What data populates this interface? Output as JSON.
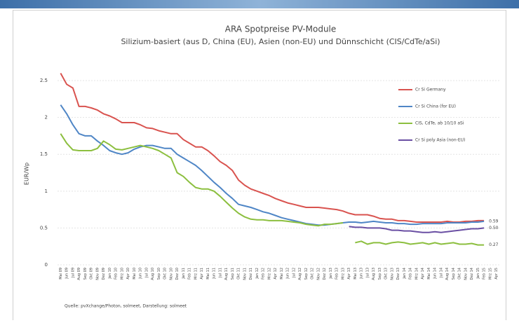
{
  "chart_data": {
    "type": "line",
    "title": "ARA Spotpreise PV-Module",
    "subtitle": "Silizium-basiert (aus D, China (EU), Asien (non-EU) und Dünnschicht (CIS/CdTe/aSi)",
    "y_label": "EUR/Wp",
    "source": "Quelle: pvXchange/Photon, solmeet, Darstellung: solmeet",
    "categories": [
      "Mai 09",
      "Jun 09",
      "Jul 09",
      "Aug 09",
      "Sep 09",
      "Okt 09",
      "Nov 09",
      "Dez 09",
      "Jan 10",
      "Feb 10",
      "Mrz 10",
      "Apr 10",
      "Mai 10",
      "Jun 10",
      "Jul 10",
      "Aug 10",
      "Sep 10",
      "Okt 10",
      "Nov 10",
      "Dez 10",
      "Jan 11",
      "Feb 11",
      "Mrz 11",
      "Apr 11",
      "Mai 11",
      "Jun 11",
      "Jul 11",
      "Aug 11",
      "Sep 11",
      "Okt 11",
      "Nov 11",
      "Dez 11",
      "Jan 12",
      "Feb 12",
      "Mrz 12",
      "Apr 12",
      "Mai 12",
      "Jun 12",
      "Jul 12",
      "Aug 12",
      "Sep 12",
      "Okt 12",
      "Nov 12",
      "Dez 12",
      "Jan 13",
      "Feb 13",
      "Mrz 13",
      "Apr 13",
      "Mai 13",
      "Jun 13",
      "Jul 13",
      "Aug 13",
      "Sep 13",
      "Okt 13",
      "Nov 13",
      "Dez 13",
      "Jan 14",
      "Feb 14",
      "Mrz 14",
      "Apr 14",
      "Mai 14",
      "Jun 14",
      "Jul 14",
      "Aug 14",
      "Sep 14",
      "Okt 14",
      "Nov 14",
      "Dez 14",
      "Jan 15",
      "Feb 15",
      "Mrz 15",
      "Apr 15"
    ],
    "series": [
      {
        "name": "Cr Si Germany",
        "color": "#d9534f",
        "values": [
          2.6,
          2.45,
          2.4,
          2.15,
          2.15,
          2.13,
          2.1,
          2.05,
          2.02,
          1.98,
          1.93,
          1.93,
          1.93,
          1.9,
          1.86,
          1.85,
          1.82,
          1.8,
          1.78,
          1.78,
          1.7,
          1.65,
          1.6,
          1.6,
          1.55,
          1.48,
          1.4,
          1.35,
          1.28,
          1.15,
          1.08,
          1.03,
          1.0,
          0.97,
          0.94,
          0.9,
          0.87,
          0.84,
          0.82,
          0.8,
          0.78,
          0.78,
          0.78,
          0.77,
          0.76,
          0.75,
          0.73,
          0.7,
          0.68,
          0.68,
          0.68,
          0.66,
          0.63,
          0.62,
          0.62,
          0.6,
          0.6,
          0.59,
          0.58,
          0.58,
          0.58,
          0.58,
          0.58,
          0.59,
          0.58,
          0.58,
          0.59,
          0.59,
          0.6,
          0.6,
          null,
          null
        ]
      },
      {
        "name": "Cr Si China (for EU)",
        "color": "#4f86c6",
        "values": [
          2.17,
          2.05,
          1.9,
          1.78,
          1.75,
          1.75,
          1.68,
          1.62,
          1.55,
          1.52,
          1.5,
          1.52,
          1.57,
          1.6,
          1.62,
          1.62,
          1.6,
          1.58,
          1.58,
          1.5,
          1.45,
          1.4,
          1.35,
          1.28,
          1.2,
          1.12,
          1.05,
          0.97,
          0.9,
          0.82,
          0.8,
          0.78,
          0.75,
          0.72,
          0.7,
          0.67,
          0.64,
          0.62,
          0.6,
          0.58,
          0.56,
          0.55,
          0.54,
          0.54,
          0.55,
          0.56,
          0.57,
          0.58,
          0.58,
          0.57,
          0.58,
          0.59,
          0.58,
          0.57,
          0.57,
          0.56,
          0.56,
          0.55,
          0.55,
          0.56,
          0.56,
          0.56,
          0.56,
          0.57,
          0.57,
          0.57,
          0.57,
          0.58,
          0.58,
          0.59,
          null,
          null
        ],
        "value_labels": [
          null,
          null,
          null,
          null,
          null,
          null,
          null,
          null,
          null,
          null,
          null,
          null,
          null,
          null,
          null,
          null,
          null,
          null,
          null,
          null,
          null,
          null,
          null,
          null,
          null,
          null,
          null,
          null,
          null,
          null,
          null,
          null,
          null,
          null,
          null,
          null,
          null,
          null,
          null,
          null,
          null,
          null,
          null,
          null,
          null,
          null,
          null,
          null,
          null,
          null,
          null,
          null,
          null,
          null,
          null,
          null,
          null,
          null,
          null,
          null,
          null,
          null,
          null,
          null,
          null,
          null,
          null,
          null,
          null,
          "0.59",
          null,
          null
        ]
      },
      {
        "name": "CIS, CdTe, ab 10/10 aSi",
        "color": "#8cbf3f",
        "values": [
          1.78,
          1.65,
          1.56,
          1.55,
          1.55,
          1.55,
          1.58,
          1.68,
          1.63,
          1.57,
          1.56,
          1.58,
          1.6,
          1.62,
          1.6,
          1.58,
          1.55,
          1.5,
          1.45,
          1.25,
          1.2,
          1.12,
          1.05,
          1.03,
          1.03,
          1.0,
          0.93,
          0.85,
          0.77,
          0.7,
          0.65,
          0.62,
          0.61,
          0.61,
          0.6,
          0.6,
          0.6,
          0.59,
          0.58,
          0.57,
          0.55,
          0.54,
          0.53,
          0.55,
          0.55,
          0.56,
          0.57,
          null,
          0.3,
          0.32,
          0.28,
          0.3,
          0.3,
          0.28,
          0.3,
          0.31,
          0.3,
          0.28,
          0.29,
          0.3,
          0.28,
          0.3,
          0.28,
          0.29,
          0.3,
          0.28,
          0.28,
          0.29,
          0.27,
          0.27,
          null,
          null
        ],
        "value_labels": [
          null,
          null,
          null,
          null,
          null,
          null,
          null,
          null,
          null,
          null,
          null,
          null,
          null,
          null,
          null,
          null,
          null,
          null,
          null,
          null,
          null,
          null,
          null,
          null,
          null,
          null,
          null,
          null,
          null,
          null,
          null,
          null,
          null,
          null,
          null,
          null,
          null,
          null,
          null,
          null,
          null,
          null,
          null,
          null,
          null,
          null,
          null,
          null,
          null,
          null,
          null,
          null,
          null,
          null,
          null,
          null,
          null,
          null,
          null,
          null,
          null,
          null,
          null,
          null,
          null,
          null,
          null,
          null,
          null,
          "0.27",
          null,
          null
        ]
      },
      {
        "name": "Cr Si poly Asia (non-EU)",
        "color": "#6a4fa3",
        "values": [
          null,
          null,
          null,
          null,
          null,
          null,
          null,
          null,
          null,
          null,
          null,
          null,
          null,
          null,
          null,
          null,
          null,
          null,
          null,
          null,
          null,
          null,
          null,
          null,
          null,
          null,
          null,
          null,
          null,
          null,
          null,
          null,
          null,
          null,
          null,
          null,
          null,
          null,
          null,
          null,
          null,
          null,
          null,
          null,
          null,
          null,
          null,
          0.52,
          0.51,
          0.51,
          0.5,
          0.5,
          0.5,
          0.49,
          0.47,
          0.47,
          0.46,
          0.46,
          0.45,
          0.44,
          0.44,
          0.45,
          0.44,
          0.45,
          0.46,
          0.47,
          0.48,
          0.49,
          0.49,
          0.5,
          null,
          null
        ],
        "value_labels": [
          null,
          null,
          null,
          null,
          null,
          null,
          null,
          null,
          null,
          null,
          null,
          null,
          null,
          null,
          null,
          null,
          null,
          null,
          null,
          null,
          null,
          null,
          null,
          null,
          null,
          null,
          null,
          null,
          null,
          null,
          null,
          null,
          null,
          null,
          null,
          null,
          null,
          null,
          null,
          null,
          null,
          null,
          null,
          null,
          null,
          null,
          null,
          null,
          null,
          null,
          null,
          null,
          null,
          null,
          null,
          null,
          null,
          null,
          null,
          null,
          null,
          null,
          null,
          null,
          null,
          null,
          null,
          null,
          null,
          "0.50",
          null,
          null
        ]
      }
    ],
    "ylim": [
      0,
      2.7
    ],
    "yticks": [
      0,
      0.5,
      1,
      1.5,
      2,
      2.5
    ],
    "grid": true,
    "legend": "right"
  }
}
